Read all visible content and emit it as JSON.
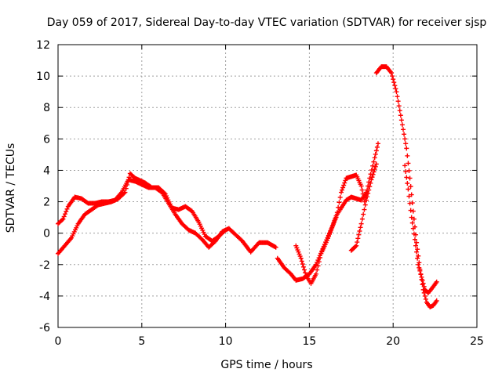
{
  "chart_data": {
    "type": "scatter",
    "title": "Day 059 of 2017, Sidereal Day-to-day VTEC variation (SDTVAR) for receiver sjsp",
    "xlabel": "GPS time / hours",
    "ylabel": "SDTVAR / TECUs",
    "xlim": [
      0,
      25
    ],
    "ylim": [
      -6,
      12
    ],
    "xticks": [
      "0",
      "5",
      "10",
      "15",
      "20",
      "25"
    ],
    "yticks": [
      "-6",
      "-4",
      "-2",
      "0",
      "2",
      "4",
      "6",
      "8",
      "10",
      "12"
    ],
    "grid": true,
    "marker": "plus",
    "color": "#ff0000",
    "series": [
      {
        "points": [
          [
            0,
            0.6
          ],
          [
            0.3,
            0.9
          ],
          [
            0.6,
            1.7
          ],
          [
            1.0,
            2.3
          ],
          [
            1.4,
            2.2
          ],
          [
            1.8,
            1.9
          ],
          [
            2.2,
            1.9
          ],
          [
            2.6,
            2.0
          ],
          [
            3.0,
            2.0
          ],
          [
            3.4,
            2.1
          ],
          [
            3.8,
            2.6
          ],
          [
            4.2,
            3.4
          ],
          [
            4.6,
            3.3
          ],
          [
            5.0,
            3.1
          ],
          [
            5.4,
            2.9
          ],
          [
            5.8,
            2.9
          ],
          [
            6.2,
            2.6
          ],
          [
            6.6,
            1.9
          ],
          [
            7.0,
            1.2
          ],
          [
            7.4,
            0.6
          ],
          [
            7.8,
            0.2
          ],
          [
            8.2,
            0.0
          ],
          [
            8.6,
            -0.4
          ],
          [
            9.0,
            -0.9
          ],
          [
            9.4,
            -0.5
          ],
          [
            9.8,
            0.1
          ],
          [
            10.2,
            0.3
          ],
          [
            10.6,
            -0.1
          ],
          [
            11.0,
            -0.5
          ],
          [
            11.5,
            -1.2
          ],
          [
            12.0,
            -0.6
          ],
          [
            12.5,
            -0.6
          ],
          [
            13.0,
            -0.9
          ]
        ]
      },
      {
        "points": [
          [
            0,
            -1.3
          ],
          [
            0.4,
            -0.8
          ],
          [
            0.8,
            -0.3
          ],
          [
            1.2,
            0.6
          ],
          [
            1.6,
            1.2
          ],
          [
            2.0,
            1.5
          ],
          [
            2.4,
            1.8
          ],
          [
            2.8,
            1.9
          ],
          [
            3.2,
            2.0
          ],
          [
            3.6,
            2.2
          ],
          [
            4.0,
            2.6
          ],
          [
            4.3,
            3.8
          ],
          [
            4.6,
            3.5
          ],
          [
            5.2,
            3.2
          ],
          [
            5.6,
            2.9
          ],
          [
            6.0,
            2.9
          ],
          [
            6.4,
            2.5
          ],
          [
            6.8,
            1.6
          ],
          [
            7.2,
            1.5
          ],
          [
            7.6,
            1.7
          ],
          [
            8.0,
            1.4
          ],
          [
            8.4,
            0.7
          ],
          [
            8.8,
            -0.2
          ],
          [
            9.2,
            -0.5
          ],
          [
            9.6,
            -0.2
          ],
          [
            10.0,
            0.2
          ]
        ]
      },
      {
        "points": [
          [
            13.1,
            -1.6
          ],
          [
            13.5,
            -2.2
          ],
          [
            13.9,
            -2.6
          ],
          [
            14.2,
            -3.0
          ],
          [
            14.6,
            -2.9
          ],
          [
            15.0,
            -2.6
          ],
          [
            15.4,
            -2.0
          ],
          [
            15.8,
            -1.0
          ],
          [
            16.2,
            0.0
          ],
          [
            16.6,
            1.0
          ],
          [
            16.9,
            2.6
          ],
          [
            17.2,
            3.5
          ],
          [
            17.5,
            3.6
          ],
          [
            17.8,
            3.7
          ],
          [
            18.1,
            3.0
          ],
          [
            18.3,
            2.0
          ],
          [
            18.6,
            3.5
          ],
          [
            18.9,
            4.8
          ],
          [
            19.1,
            5.7
          ]
        ]
      },
      {
        "points": [
          [
            14.2,
            -0.8
          ],
          [
            14.5,
            -1.6
          ],
          [
            14.8,
            -2.7
          ],
          [
            15.1,
            -3.2
          ],
          [
            15.4,
            -2.6
          ],
          [
            15.7,
            -1.3
          ],
          [
            16.0,
            -0.6
          ],
          [
            16.3,
            0.2
          ],
          [
            16.6,
            1.1
          ],
          [
            16.9,
            1.6
          ],
          [
            17.2,
            2.1
          ],
          [
            17.5,
            2.3
          ],
          [
            17.8,
            2.2
          ],
          [
            18.1,
            2.1
          ],
          [
            18.4,
            2.6
          ]
        ]
      },
      {
        "points": [
          [
            17.5,
            -1.1
          ],
          [
            17.8,
            -0.8
          ],
          [
            18.1,
            0.6
          ],
          [
            18.4,
            2.1
          ],
          [
            18.7,
            3.4
          ],
          [
            19.0,
            4.4
          ]
        ]
      },
      {
        "points": [
          [
            19.0,
            10.2
          ],
          [
            19.3,
            10.6
          ],
          [
            19.6,
            10.6
          ],
          [
            19.9,
            10.2
          ],
          [
            20.2,
            9.0
          ],
          [
            20.5,
            7.2
          ],
          [
            20.8,
            5.4
          ],
          [
            21.0,
            3.5
          ],
          [
            21.2,
            1.4
          ],
          [
            21.4,
            -0.6
          ],
          [
            21.6,
            -2.3
          ],
          [
            21.8,
            -3.6
          ],
          [
            22.0,
            -4.4
          ],
          [
            22.2,
            -4.7
          ],
          [
            22.4,
            -4.6
          ],
          [
            22.6,
            -4.3
          ]
        ]
      },
      {
        "points": [
          [
            20.7,
            4.3
          ],
          [
            20.9,
            2.8
          ],
          [
            21.1,
            1.0
          ],
          [
            21.3,
            -0.4
          ],
          [
            21.5,
            -2.0
          ],
          [
            21.7,
            -2.8
          ],
          [
            21.9,
            -3.6
          ],
          [
            22.1,
            -3.8
          ],
          [
            22.4,
            -3.4
          ],
          [
            22.6,
            -3.1
          ]
        ]
      }
    ]
  }
}
